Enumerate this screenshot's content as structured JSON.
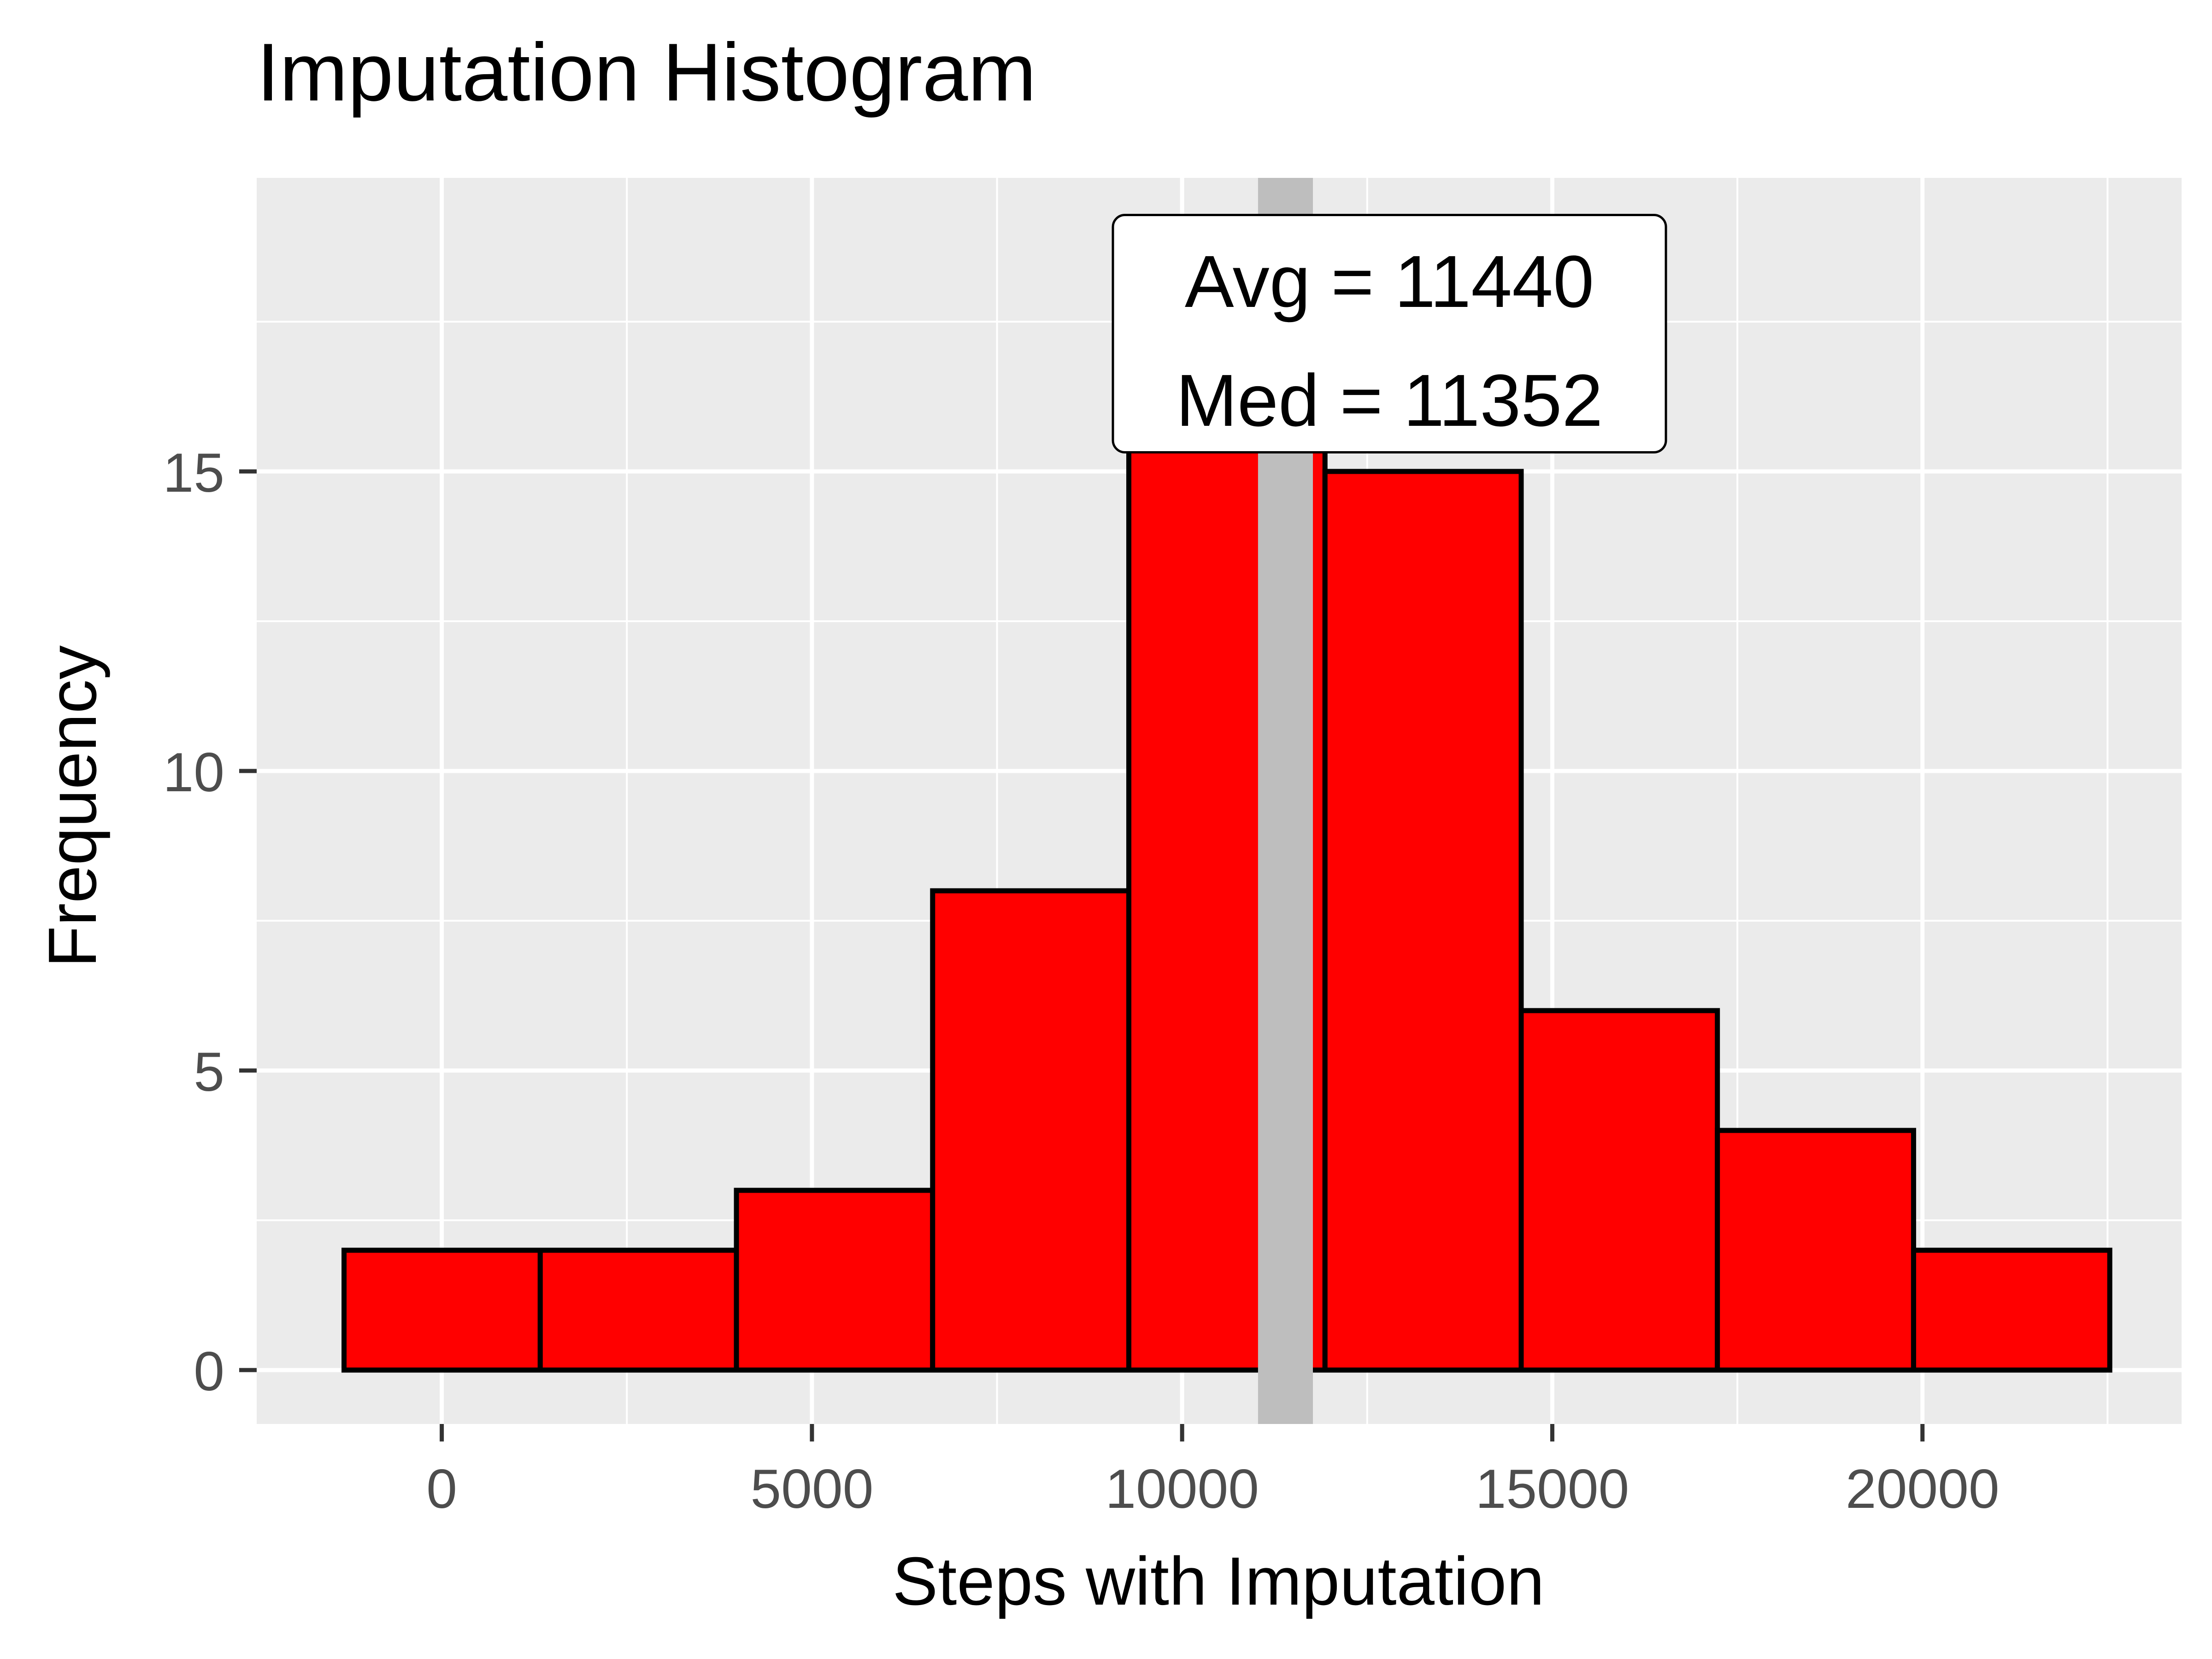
{
  "chart_data": {
    "type": "bar",
    "title": "Imputation Histogram",
    "xlabel": "Steps with Imputation",
    "ylabel": "Frequency",
    "xlim": [
      -2500,
      23500
    ],
    "ylim": [
      -0.9,
      19.9
    ],
    "x_ticks": [
      0,
      5000,
      10000,
      15000,
      20000
    ],
    "y_ticks": [
      0,
      5,
      10,
      15
    ],
    "bins": [
      {
        "x0": -1320,
        "x1": 1330,
        "count": 2
      },
      {
        "x0": 1330,
        "x1": 3980,
        "count": 2
      },
      {
        "x0": 3980,
        "x1": 6630,
        "count": 3
      },
      {
        "x0": 6630,
        "x1": 9280,
        "count": 8
      },
      {
        "x0": 9280,
        "x1": 11930,
        "count": 19
      },
      {
        "x0": 11930,
        "x1": 14580,
        "count": 15
      },
      {
        "x0": 14580,
        "x1": 17230,
        "count": 6
      },
      {
        "x0": 17230,
        "x1": 19880,
        "count": 4
      },
      {
        "x0": 19880,
        "x1": 22530,
        "count": 2
      }
    ],
    "reference_lines": [
      {
        "x": 11440,
        "label": "Avg"
      },
      {
        "x": 11352,
        "label": "Med"
      }
    ],
    "annotation": {
      "line1": "Avg = 11440",
      "line2": "Med = 11352",
      "x": 12800,
      "y": 17.3
    },
    "grid": true,
    "colors": {
      "panel": "#EBEBEB",
      "grid": "#FFFFFF",
      "bar_fill": "#FF0000",
      "bar_outline": "#000000",
      "reference_line": "#BEBEBE",
      "tick_label": "#4D4D4D",
      "text": "#000000"
    }
  }
}
